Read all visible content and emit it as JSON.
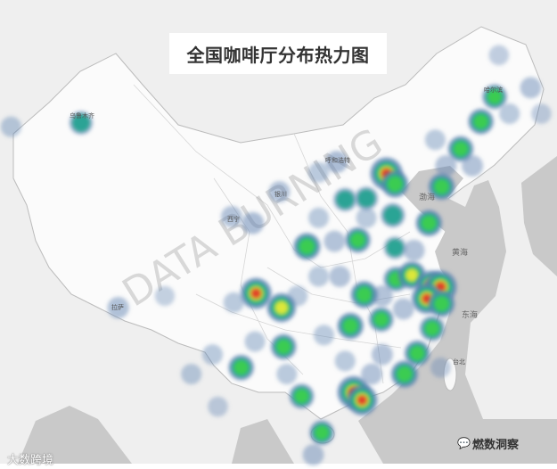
{
  "title": "全国咖啡厅分布热力图",
  "watermark": "DATA BURNING",
  "labels": {
    "urumqi": "乌鲁木齐",
    "harbin": "哈尔滨",
    "hohhot": "呼和浩特",
    "lhasa": "拉萨",
    "xining": "西宁",
    "yinchuan": "银川",
    "taipei": "台北",
    "bohai": "渤海",
    "huanghai": "黄海",
    "donghai": "东海"
  },
  "footer": {
    "left_logo": "大数跨境",
    "right_logo": "燃数洞察",
    "right_icon": "wechat-icon"
  },
  "colors": {
    "sea": "#c9c9c9",
    "land": "#efefef",
    "china": "#fbfbfb",
    "low": "#5b7fb0",
    "mid": "#1fa38f",
    "green": "#3ccf4e",
    "yellow": "#e6e83a",
    "high": "#e0452b"
  },
  "heat_points": [
    [
      87.6,
      43.8,
      0.35
    ],
    [
      91.1,
      29.6,
      0.22
    ],
    [
      101.8,
      36.6,
      0.2
    ],
    [
      103.8,
      36.1,
      0.25
    ],
    [
      106.3,
      38.5,
      0.2
    ],
    [
      111.7,
      40.8,
      0.25
    ],
    [
      116.4,
      39.9,
      1.0
    ],
    [
      117.2,
      39.1,
      0.6
    ],
    [
      114.5,
      38.0,
      0.35
    ],
    [
      112.5,
      37.9,
      0.35
    ],
    [
      117.0,
      36.7,
      0.4
    ],
    [
      120.4,
      36.1,
      0.55
    ],
    [
      121.6,
      38.9,
      0.55
    ],
    [
      123.4,
      41.8,
      0.5
    ],
    [
      125.3,
      43.9,
      0.5
    ],
    [
      126.6,
      45.8,
      0.45
    ],
    [
      113.7,
      34.8,
      0.5
    ],
    [
      108.9,
      34.3,
      0.6
    ],
    [
      104.1,
      30.7,
      0.9
    ],
    [
      106.5,
      29.6,
      0.75
    ],
    [
      114.3,
      30.6,
      0.6
    ],
    [
      117.3,
      31.8,
      0.45
    ],
    [
      118.8,
      32.1,
      0.65
    ],
    [
      120.6,
      31.3,
      0.8
    ],
    [
      121.5,
      31.2,
      1.0
    ],
    [
      120.2,
      30.3,
      0.85
    ],
    [
      121.6,
      29.9,
      0.55
    ],
    [
      113.0,
      28.2,
      0.55
    ],
    [
      115.9,
      28.7,
      0.45
    ],
    [
      119.3,
      26.1,
      0.5
    ],
    [
      118.1,
      24.5,
      0.6
    ],
    [
      113.3,
      23.1,
      1.0
    ],
    [
      114.1,
      22.5,
      0.85
    ],
    [
      106.7,
      26.6,
      0.5
    ],
    [
      102.7,
      25.0,
      0.5
    ],
    [
      108.4,
      22.8,
      0.45
    ],
    [
      110.3,
      20.0,
      0.45
    ],
    [
      120.7,
      28.0,
      0.45
    ],
    [
      117.2,
      34.2,
      0.3
    ],
    [
      111.5,
      34.7,
      0.2
    ],
    [
      110.0,
      32.0,
      0.15
    ],
    [
      112.0,
      32.0,
      0.2
    ],
    [
      108.0,
      30.5,
      0.15
    ],
    [
      110.5,
      27.5,
      0.15
    ],
    [
      104.0,
      27.0,
      0.15
    ],
    [
      100.0,
      26.0,
      0.15
    ],
    [
      107.0,
      24.5,
      0.15
    ],
    [
      116.0,
      26.0,
      0.2
    ],
    [
      115.0,
      24.5,
      0.2
    ],
    [
      112.5,
      25.5,
      0.15
    ],
    [
      118.0,
      29.5,
      0.2
    ],
    [
      116.0,
      30.5,
      0.2
    ],
    [
      119.0,
      34.0,
      0.2
    ],
    [
      114.5,
      36.5,
      0.15
    ],
    [
      110.0,
      36.5,
      0.15
    ],
    [
      122.0,
      40.5,
      0.2
    ],
    [
      124.5,
      40.5,
      0.2
    ],
    [
      130.0,
      46.5,
      0.2
    ],
    [
      128.0,
      44.5,
      0.15
    ],
    [
      121.0,
      42.5,
      0.15
    ],
    [
      98.0,
      24.5,
      0.15
    ],
    [
      102.0,
      30.0,
      0.15
    ],
    [
      110.0,
      40.0,
      0.15
    ],
    [
      81.0,
      43.5,
      0.15
    ],
    [
      95.5,
      30.5,
      0.1
    ],
    [
      127.0,
      49.0,
      0.12
    ],
    [
      131.0,
      44.5,
      0.12
    ],
    [
      109.5,
      18.3,
      0.2
    ],
    [
      121.5,
      25.0,
      0.12
    ],
    [
      100.5,
      22.0,
      0.12
    ]
  ]
}
